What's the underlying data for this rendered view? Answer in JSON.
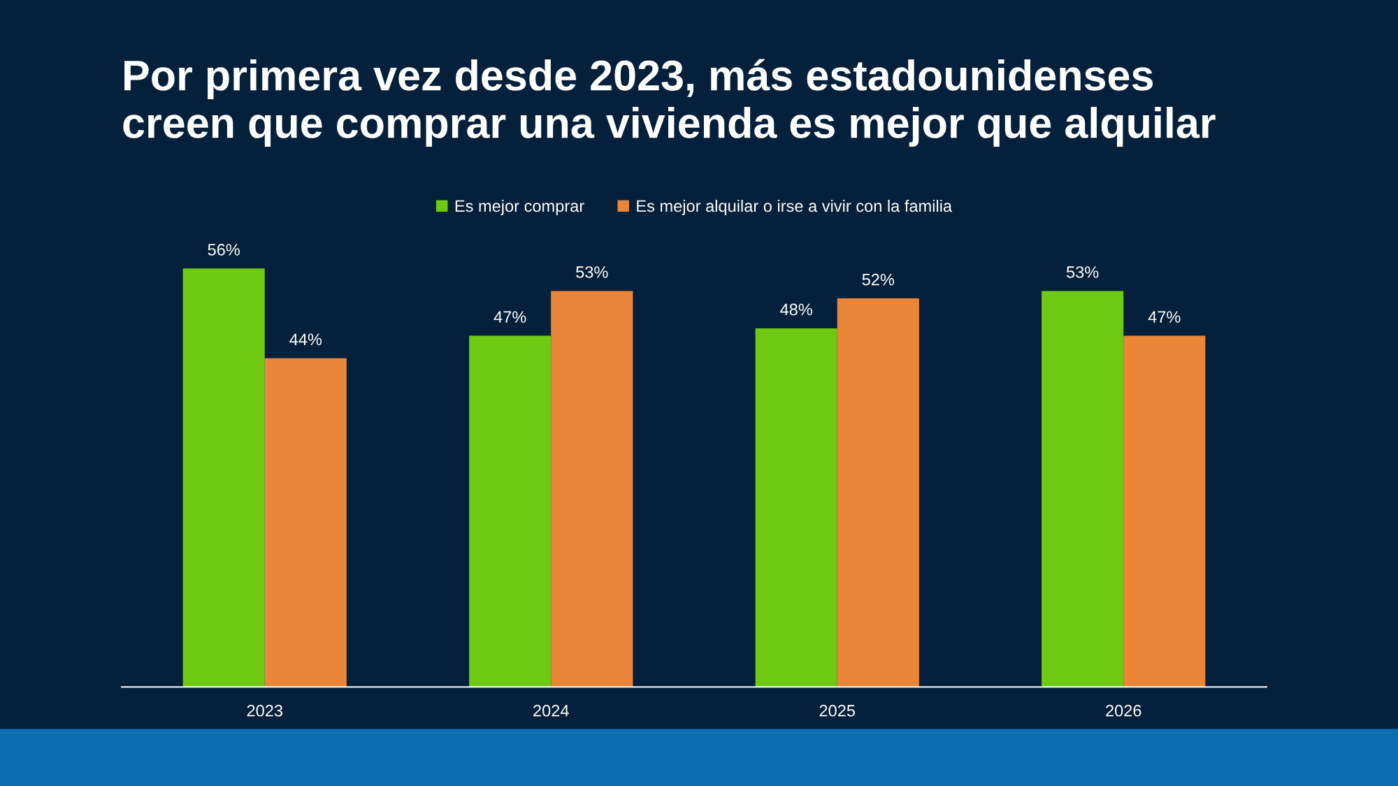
{
  "chart_data": {
    "type": "bar",
    "title": "Por primera vez desde 2023, más estadounidenses\ncreen que comprar una vivienda es mejor que alquilar",
    "categories": [
      "2023",
      "2024",
      "2025",
      "2026"
    ],
    "series": [
      {
        "name": "Es mejor comprar",
        "color": "#6ec912",
        "values": [
          56,
          47,
          48,
          53
        ],
        "value_labels": [
          "56%",
          "47%",
          "48%",
          "53%"
        ]
      },
      {
        "name": "Es mejor alquilar o irse a vivir con la familia",
        "color": "#eb8638",
        "values": [
          44,
          53,
          52,
          47
        ],
        "value_labels": [
          "44%",
          "53%",
          "52%",
          "47%"
        ]
      }
    ],
    "tick_labels": "x",
    "grid": false,
    "legend": "top"
  }
}
